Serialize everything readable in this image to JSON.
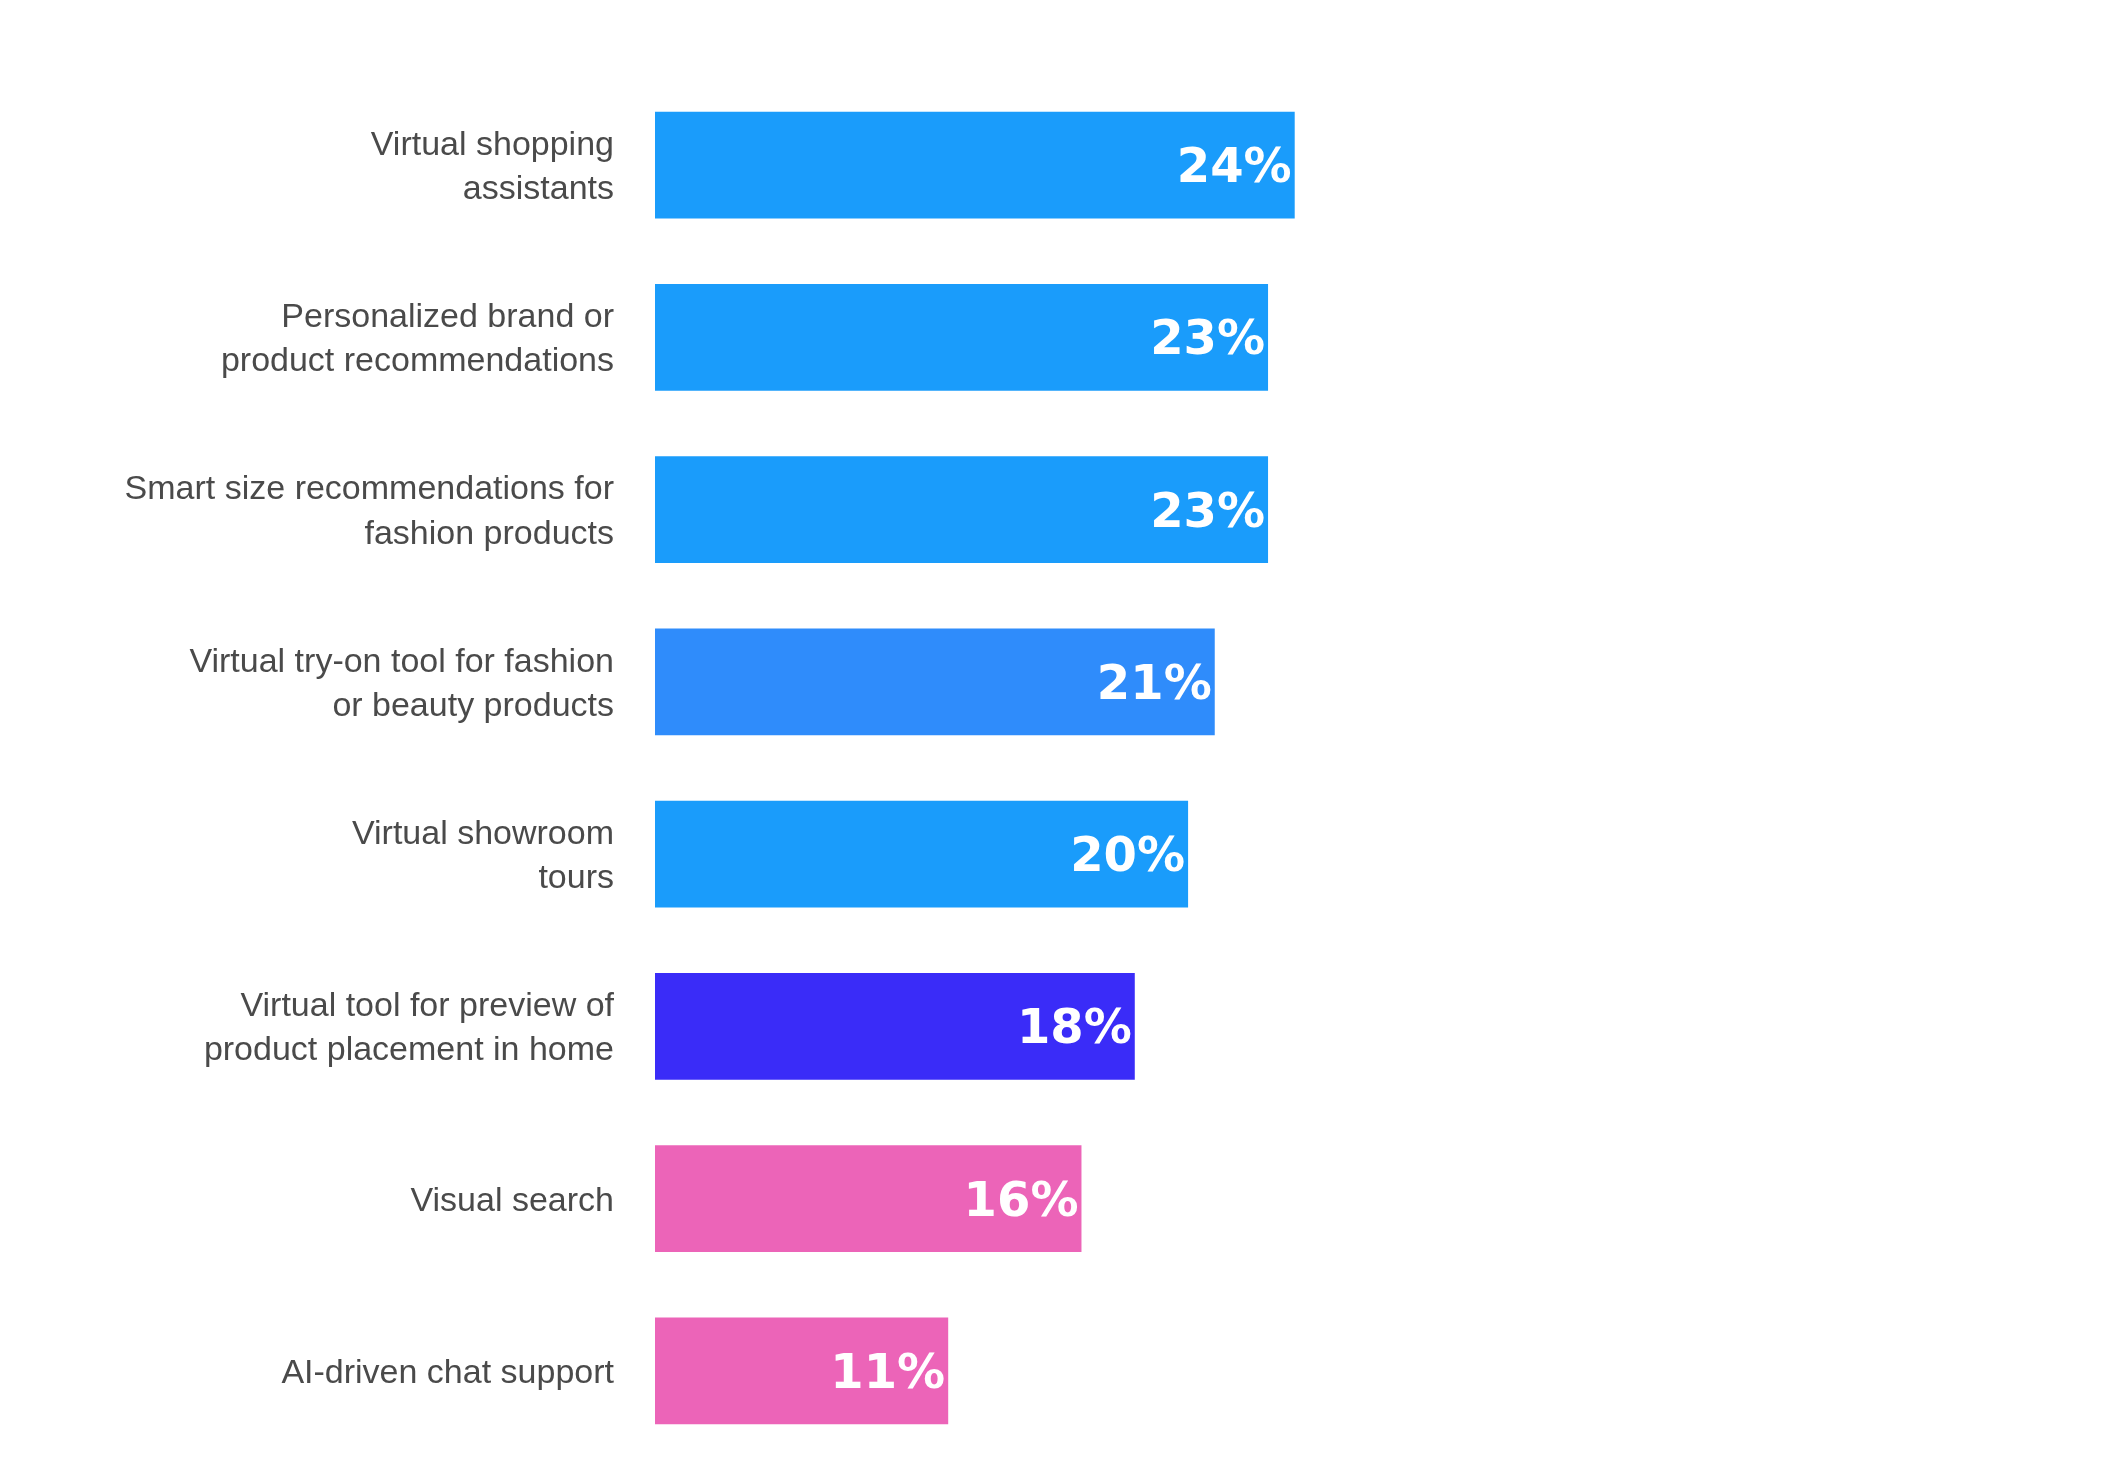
{
  "chart_data": {
    "type": "bar",
    "orientation": "horizontal",
    "categories": [
      "Virtual shopping\nassistants",
      "Personalized brand or\nproduct recommendations",
      "Smart size recommendations for\nfashion products",
      "Virtual try-on tool for fashion\nor beauty products",
      "Virtual showroom\ntours",
      "Virtual tool for preview of\nproduct placement in home",
      "Visual search",
      "AI-driven chat support"
    ],
    "values": [
      24,
      23,
      23,
      21,
      20,
      18,
      16,
      11
    ],
    "value_labels": [
      "24%",
      "23%",
      "23%",
      "21%",
      "20%",
      "18%",
      "16%",
      "11%"
    ],
    "colors": [
      "#1a9cfb",
      "#1a9cfb",
      "#1a9cfb",
      "#2f8cfb",
      "#1a9cfb",
      "#3a2cf8",
      "#ec64b8",
      "#ec64b8"
    ],
    "xlim": [
      0,
      55
    ],
    "tick_labels": "y",
    "grid": false
  }
}
